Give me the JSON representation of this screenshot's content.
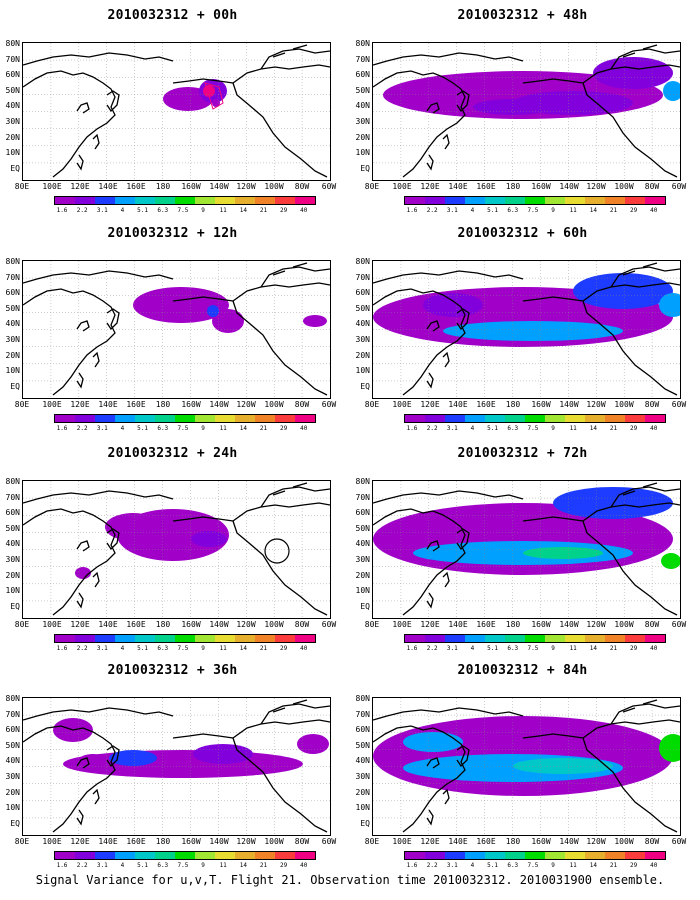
{
  "panels": [
    {
      "title": "2010032312 + 00h",
      "lead": "00h"
    },
    {
      "title": "2010032312 + 12h",
      "lead": "12h"
    },
    {
      "title": "2010032312 + 24h",
      "lead": "24h"
    },
    {
      "title": "2010032312 + 36h",
      "lead": "36h"
    },
    {
      "title": "2010032312 + 48h",
      "lead": "48h"
    },
    {
      "title": "2010032312 + 60h",
      "lead": "60h"
    },
    {
      "title": "2010032312 + 72h",
      "lead": "72h"
    },
    {
      "title": "2010032312 + 84h",
      "lead": "84h"
    }
  ],
  "lat_labels": [
    "80N",
    "70N",
    "60N",
    "50N",
    "40N",
    "30N",
    "20N",
    "10N",
    "EQ"
  ],
  "lon_labels": [
    "80E",
    "100E",
    "120E",
    "140E",
    "160E",
    "180",
    "160W",
    "140W",
    "120W",
    "100W",
    "80W",
    "60W"
  ],
  "colorbar": {
    "labels": [
      "1.6",
      "2.2",
      "3.1",
      "4",
      "5.1",
      "6.3",
      "7.5",
      "9",
      "11",
      "14",
      "21",
      "29",
      "40"
    ],
    "colors": [
      "#a000c8",
      "#8200dc",
      "#1e3cff",
      "#00a0ff",
      "#00c8c8",
      "#00d28c",
      "#00dc00",
      "#a0e632",
      "#e6dc32",
      "#e6af2d",
      "#f08228",
      "#fa3c3c",
      "#f00082"
    ]
  },
  "caption": "Signal Variance for u,v,T. Flight 21. Observation time 2010032312. 2010031900 ensemble."
}
